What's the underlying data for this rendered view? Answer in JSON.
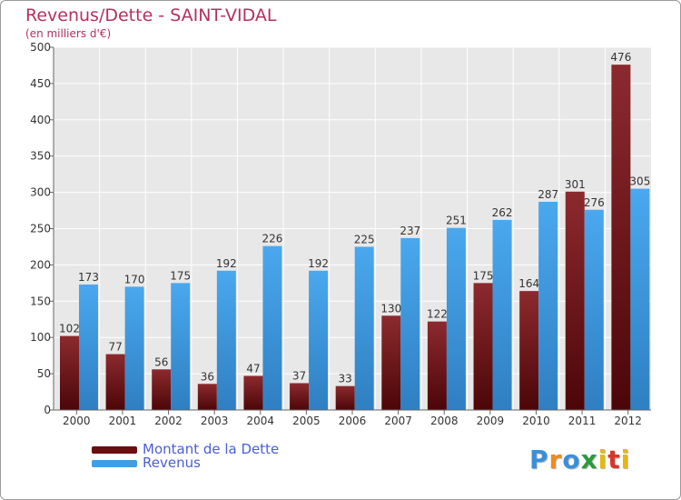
{
  "chart_data": {
    "type": "bar",
    "title": "Revenus/Dette - SAINT-VIDAL",
    "subtitle": "(en milliers d'€)",
    "categories": [
      "2000",
      "2001",
      "2002",
      "2003",
      "2004",
      "2005",
      "2006",
      "2007",
      "2008",
      "2009",
      "2010",
      "2011",
      "2012"
    ],
    "series": [
      {
        "name": "Montant de la Dette",
        "color": "#7a1a1d",
        "values": [
          102,
          77,
          56,
          36,
          47,
          37,
          33,
          130,
          122,
          175,
          164,
          301,
          476
        ]
      },
      {
        "name": "Revenus",
        "color": "#3f9ee6",
        "values": [
          173,
          170,
          175,
          192,
          226,
          192,
          225,
          237,
          251,
          262,
          287,
          276,
          305
        ]
      }
    ],
    "ylim": [
      0,
      500
    ],
    "yticks": [
      "0",
      "50",
      "100",
      "150",
      "200",
      "250",
      "300",
      "350",
      "400",
      "450",
      "500"
    ],
    "grid": true,
    "legend_position": "bottom-left"
  },
  "logo": {
    "text": "Proxiti",
    "colors": [
      "#3a8fd9",
      "#f08a1c",
      "#3a8fd9",
      "#2a9b3c",
      "#e6b810",
      "#d8362a",
      "#e6b810"
    ]
  }
}
